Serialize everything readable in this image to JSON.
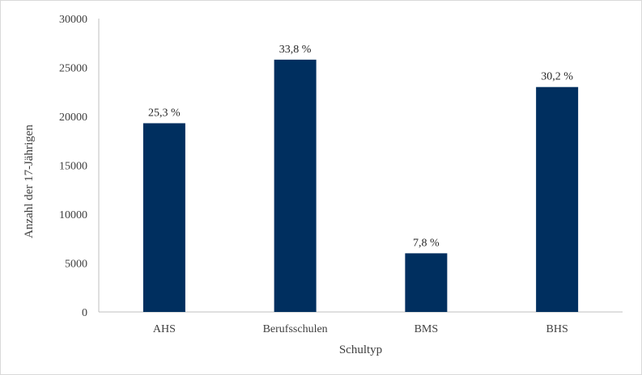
{
  "chart_data": {
    "type": "bar",
    "categories": [
      "AHS",
      "Berufsschulen",
      "BMS",
      "BHS"
    ],
    "values": [
      19300,
      25800,
      6000,
      23000
    ],
    "data_labels": [
      "25,3 %",
      "33,8 %",
      "7,8 %",
      "30,2 %"
    ],
    "xlabel": "Schultyp",
    "ylabel": "Anzahl der 17-Jährigen",
    "ylim": [
      0,
      30000
    ],
    "yticks": [
      0,
      5000,
      10000,
      15000,
      20000,
      25000,
      30000
    ],
    "grid": false,
    "legend": "none",
    "bar_color": "#002f5f"
  }
}
